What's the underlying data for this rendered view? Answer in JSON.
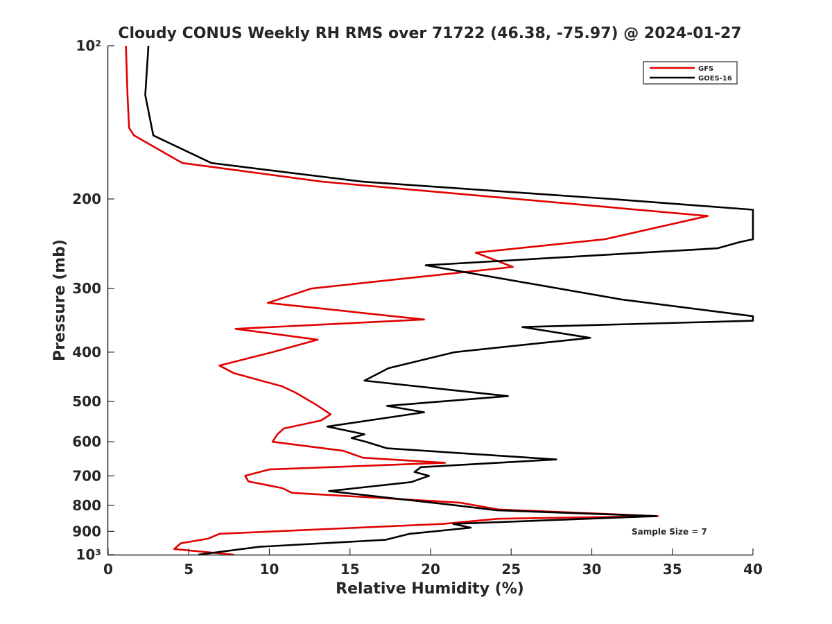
{
  "chart_data": {
    "type": "line",
    "title": "Cloudy CONUS Weekly RH RMS over 71722 (46.38, -75.97) @ 2024-01-27",
    "xlabel": "Relative Humidity (%)",
    "ylabel": "Pressure (mb)",
    "xlim": [
      0,
      40
    ],
    "ylim": [
      100,
      1000
    ],
    "yscale": "log",
    "y_reversed": true,
    "x_ticks": [
      0,
      5,
      10,
      15,
      20,
      25,
      30,
      35,
      40
    ],
    "x_tick_labels": [
      "0",
      "5",
      "10",
      "15",
      "20",
      "25",
      "30",
      "35",
      "40"
    ],
    "y_ticks": [
      100,
      200,
      300,
      400,
      500,
      600,
      700,
      800,
      900,
      1000
    ],
    "y_tick_labels": [
      "10²",
      "200",
      "300",
      "400",
      "500",
      "600",
      "700",
      "800",
      "900",
      "10³"
    ],
    "legend_position": "top-right",
    "annotation": "Sample Size = 7",
    "series": [
      {
        "name": "GFS",
        "color": "#e00000",
        "points": [
          [
            1.1,
            100
          ],
          [
            1.2,
            125
          ],
          [
            1.3,
            145
          ],
          [
            1.6,
            150
          ],
          [
            4.6,
            170
          ],
          [
            13.3,
            185
          ],
          [
            37.2,
            216
          ],
          [
            30.8,
            240
          ],
          [
            22.8,
            255
          ],
          [
            25.1,
            272
          ],
          [
            12.6,
            300
          ],
          [
            9.9,
            320
          ],
          [
            19.6,
            345
          ],
          [
            7.9,
            360
          ],
          [
            13.0,
            378
          ],
          [
            10.2,
            400
          ],
          [
            6.9,
            425
          ],
          [
            7.8,
            440
          ],
          [
            10.8,
            467
          ],
          [
            11.6,
            480
          ],
          [
            12.8,
            505
          ],
          [
            13.8,
            530
          ],
          [
            13.2,
            545
          ],
          [
            10.9,
            565
          ],
          [
            10.5,
            580
          ],
          [
            10.2,
            600
          ],
          [
            14.6,
            625
          ],
          [
            15.8,
            645
          ],
          [
            20.9,
            660
          ],
          [
            10.0,
            680
          ],
          [
            8.5,
            700
          ],
          [
            8.7,
            718
          ],
          [
            10.8,
            740
          ],
          [
            11.4,
            756
          ],
          [
            21.8,
            790
          ],
          [
            24.2,
            815
          ],
          [
            34.1,
            840
          ],
          [
            24.2,
            850
          ],
          [
            20.8,
            870
          ],
          [
            6.9,
            910
          ],
          [
            6.2,
            930
          ],
          [
            4.5,
            950
          ],
          [
            4.1,
            975
          ],
          [
            7.8,
            1000
          ]
        ]
      },
      {
        "name": "GOES-16",
        "color": "#000000",
        "points": [
          [
            2.5,
            100
          ],
          [
            2.3,
            125
          ],
          [
            2.8,
            150
          ],
          [
            6.4,
            170
          ],
          [
            15.8,
            185
          ],
          [
            31.2,
            200
          ],
          [
            40.0,
            210
          ],
          [
            40.0,
            240
          ],
          [
            39.2,
            243
          ],
          [
            37.8,
            250
          ],
          [
            19.7,
            270
          ],
          [
            31.8,
            315
          ],
          [
            40.0,
            340
          ],
          [
            40.0,
            347
          ],
          [
            25.7,
            357
          ],
          [
            29.9,
            375
          ],
          [
            21.5,
            400
          ],
          [
            17.4,
            430
          ],
          [
            15.9,
            455
          ],
          [
            24.8,
            488
          ],
          [
            17.3,
            510
          ],
          [
            19.6,
            525
          ],
          [
            13.6,
            560
          ],
          [
            15.9,
            580
          ],
          [
            15.1,
            590
          ],
          [
            16.0,
            600
          ],
          [
            17.3,
            618
          ],
          [
            27.8,
            650
          ],
          [
            19.4,
            673
          ],
          [
            19.0,
            688
          ],
          [
            19.9,
            700
          ],
          [
            18.8,
            720
          ],
          [
            13.7,
            750
          ],
          [
            21.6,
            800
          ],
          [
            24.1,
            818
          ],
          [
            34.0,
            840
          ],
          [
            21.4,
            870
          ],
          [
            22.5,
            885
          ],
          [
            18.7,
            910
          ],
          [
            17.2,
            935
          ],
          [
            9.4,
            965
          ],
          [
            5.6,
            1000
          ]
        ]
      }
    ]
  }
}
